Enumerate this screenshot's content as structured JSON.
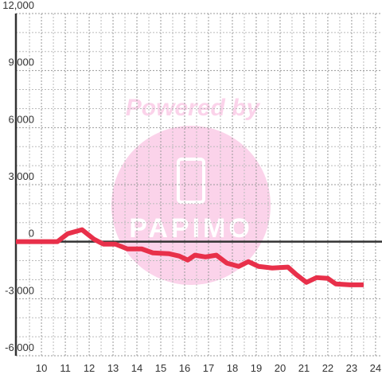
{
  "chart_data": {
    "type": "line",
    "watermark": "Powered by",
    "logo": "PAPIMO",
    "x": [
      8.93,
      10.67,
      11.1,
      11.7,
      12.2,
      12.6,
      13.1,
      13.6,
      14.2,
      14.67,
      15.33,
      15.77,
      16.13,
      16.43,
      16.87,
      17.33,
      17.77,
      18.27,
      18.67,
      19.1,
      19.67,
      20.33,
      20.67,
      21.1,
      21.53,
      22.0,
      22.33,
      22.93,
      23.5
    ],
    "series": [
      {
        "color": "#e8304a",
        "values": [
          0,
          0,
          420,
          630,
          130,
          -130,
          -130,
          -380,
          -380,
          -590,
          -630,
          -755,
          -965,
          -710,
          -800,
          -710,
          -1130,
          -1300,
          -1050,
          -1300,
          -1385,
          -1340,
          -1720,
          -2140,
          -1890,
          -1930,
          -2220,
          -2270,
          -2270
        ]
      }
    ],
    "xlim": [
      8.93,
      24.27
    ],
    "xticks": [
      10,
      11,
      12,
      13,
      14,
      15,
      16,
      17,
      18,
      19,
      20,
      21,
      22,
      23,
      24
    ],
    "ylim": [
      -6000,
      12000
    ],
    "yticks": [
      {
        "value": -6000,
        "label": "-6,000"
      },
      {
        "value": -3000,
        "label": "-3,000"
      },
      0,
      {
        "value": 3000,
        "label": "3,000"
      },
      {
        "value": 6000,
        "label": "6,000"
      },
      {
        "value": 9000,
        "label": "9,000"
      },
      {
        "value": 12000,
        "label": "12,000"
      }
    ],
    "grid": true
  }
}
